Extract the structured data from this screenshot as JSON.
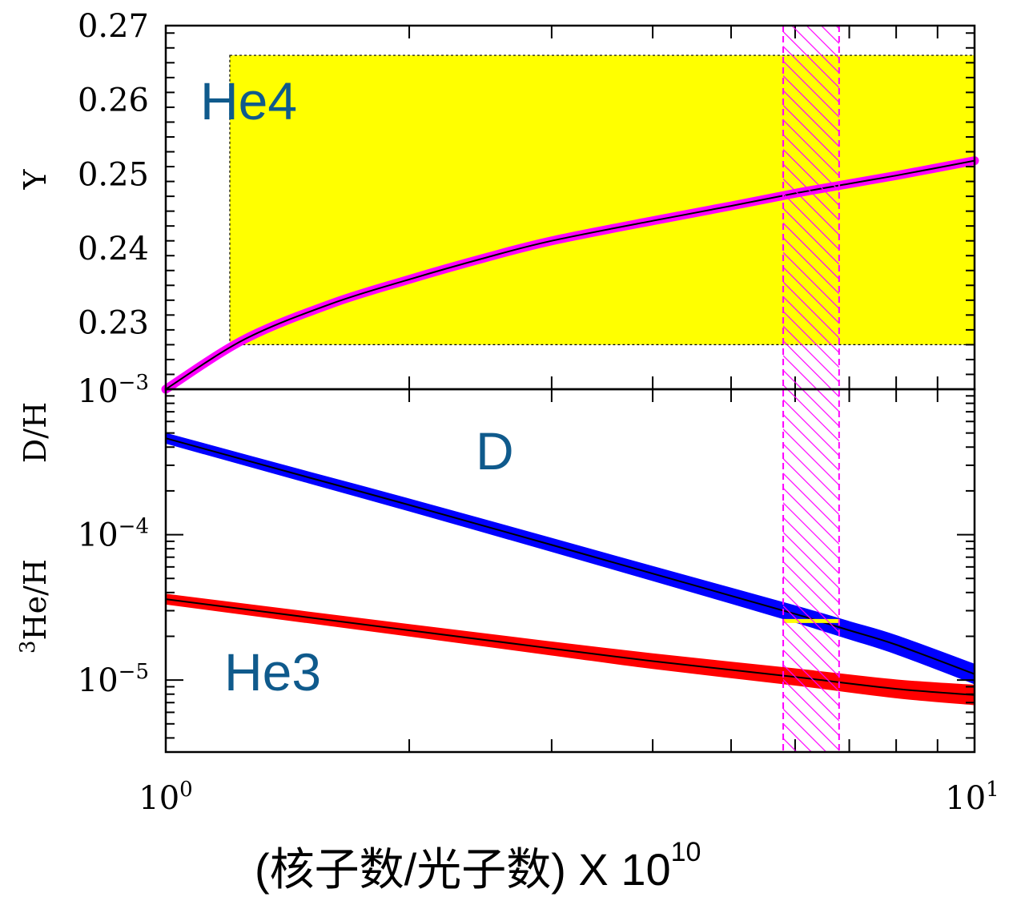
{
  "chart_data": {
    "type": "line",
    "xscale": "log",
    "xlim": [
      1,
      10
    ],
    "x_tick_labels": [
      {
        "value": 1,
        "base": "10",
        "exp": "0"
      },
      {
        "value": 10,
        "base": "10",
        "exp": "1"
      }
    ],
    "xlabel": {
      "main": "(核子数/光子数) X 10",
      "sup": "10"
    },
    "eta_band": {
      "x_range": [
        5.8,
        6.8
      ],
      "color": "#ff00ff",
      "style": "hatched"
    },
    "panels": [
      {
        "id": "he4",
        "label": "He4",
        "ylabel": "Y",
        "yscale": "linear",
        "ylim": [
          0.221,
          0.27
        ],
        "yticks": [
          "0.23",
          "0.24",
          "0.25",
          "0.26",
          "0.27"
        ],
        "y_top_boundary_label": {
          "base": "10",
          "exp": "−3"
        },
        "observed_band": {
          "x_range": [
            1.2,
            10
          ],
          "y_range": [
            0.227,
            0.266
          ],
          "color": "#ffff00"
        },
        "series": [
          {
            "color": "#ff00ff",
            "x": [
              1.0,
              1.25,
              1.6,
              2.0,
              2.5,
              3.0,
              4.0,
              5.0,
              6.0,
              7.0,
              8.0,
              10.0
            ],
            "y": [
              0.221,
              0.2277,
              0.2325,
              0.2358,
              0.2388,
              0.241,
              0.2437,
              0.2457,
              0.2474,
              0.2487,
              0.2498,
              0.2518
            ]
          }
        ]
      },
      {
        "id": "d_he3",
        "ylabel": "D/H",
        "ylabel2": {
          "sup": "3",
          "text": "He/H"
        },
        "yscale": "log",
        "ylim": [
          3.2e-06,
          0.001
        ],
        "ytick_labels": [
          {
            "value": 0.0001,
            "base": "10",
            "exp": "−4"
          },
          {
            "value": 1e-05,
            "base": "10",
            "exp": "−5"
          }
        ],
        "label_d": "D",
        "label_he3": "He3",
        "observed_marker": {
          "x_range": [
            5.8,
            6.8
          ],
          "y": 2.55e-05,
          "color": "#ffff00"
        },
        "series": [
          {
            "color": "#0000ff",
            "x": [
              1.0,
              1.5,
              2.0,
              3.0,
              4.0,
              5.0,
              6.0,
              7.0,
              8.0,
              10.0
            ],
            "y": [
              0.00046,
              0.000248,
              0.00016,
              8.5e-05,
              5.4e-05,
              3.8e-05,
              2.85e-05,
              2.2e-05,
              1.75e-05,
              1.1e-05
            ]
          },
          {
            "color": "#ff0000",
            "x": [
              1.0,
              2.0,
              3.0,
              4.0,
              6.0,
              8.0,
              10.0
            ],
            "y": [
              3.6e-05,
              2.2e-05,
              1.65e-05,
              1.35e-05,
              1.05e-05,
              8.7e-06,
              7.9e-06
            ]
          }
        ]
      }
    ]
  }
}
